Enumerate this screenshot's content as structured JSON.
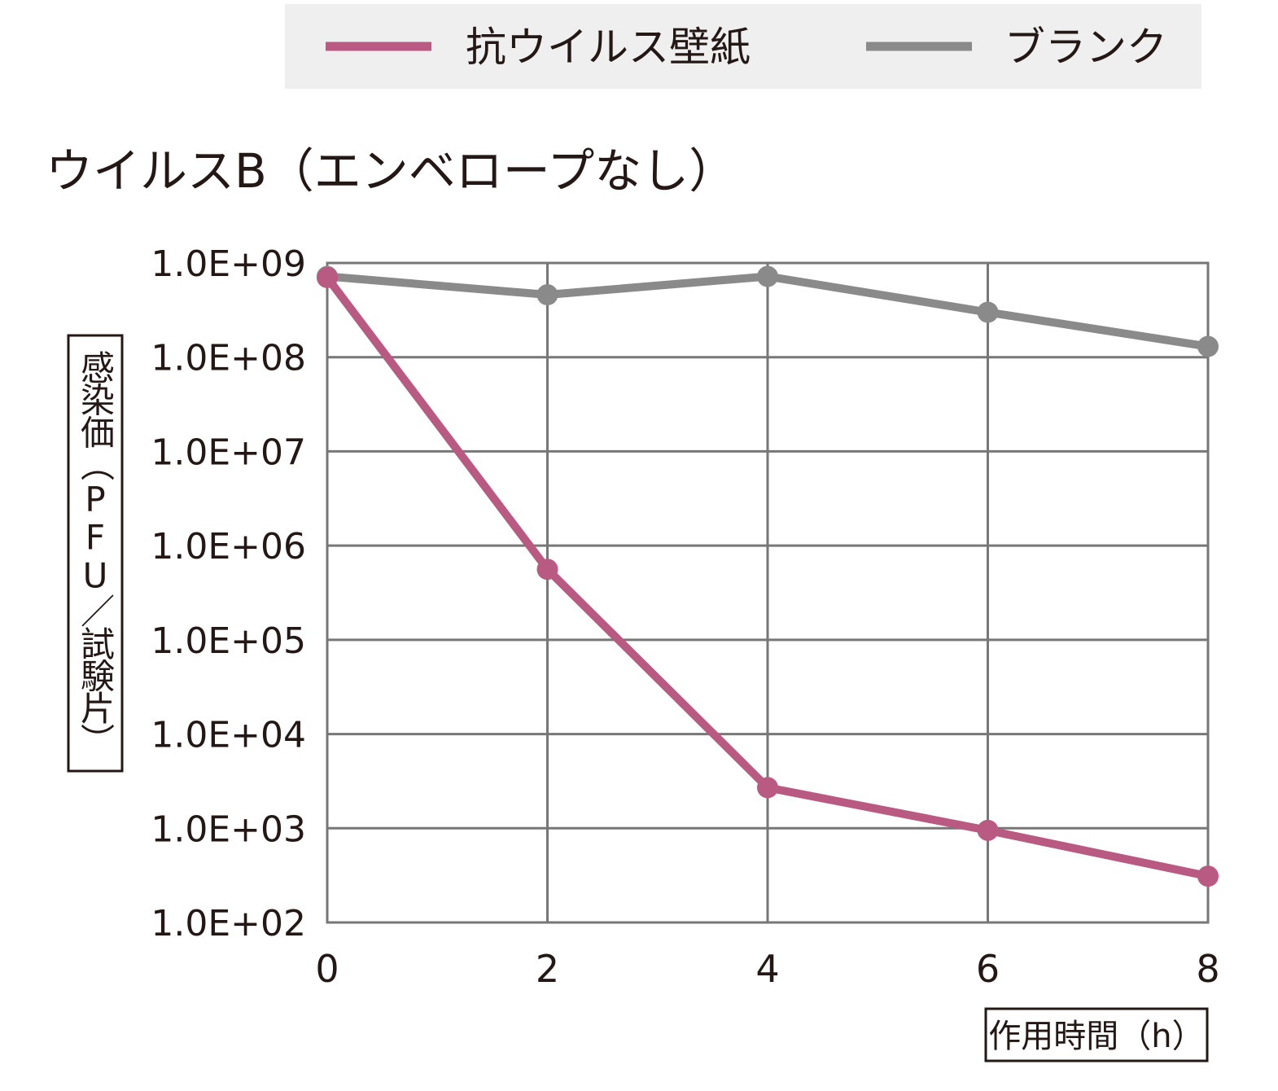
{
  "colors": {
    "antiviral": "#b85a82",
    "blank": "#8a8a8a",
    "grid": "#777777",
    "legend_bg": "#efefef",
    "text": "#231815"
  },
  "chart_data": {
    "type": "line",
    "title": "ウイルスB（エンベロープなし）",
    "xlabel": "作用時間（h）",
    "ylabel": "感染価（PFU／試験片）",
    "yscale": "log",
    "x": [
      0,
      2,
      4,
      6,
      8
    ],
    "xticks": [
      "0",
      "2",
      "4",
      "6",
      "8"
    ],
    "xlim": [
      0,
      8
    ],
    "ylim": [
      100,
      1000000000
    ],
    "yticks": [
      {
        "value": 1000000000,
        "label": "1.0E+09"
      },
      {
        "value": 100000000,
        "label": "1.0E+08"
      },
      {
        "value": 10000000,
        "label": "1.0E+07"
      },
      {
        "value": 1000000,
        "label": "1.0E+06"
      },
      {
        "value": 100000,
        "label": "1.0E+05"
      },
      {
        "value": 10000,
        "label": "1.0E+04"
      },
      {
        "value": 1000,
        "label": "1.0E+03"
      },
      {
        "value": 100,
        "label": "1.0E+02"
      }
    ],
    "grid": true,
    "legend_position": "top",
    "series": [
      {
        "name": "ブランク",
        "color": "#8a8a8a",
        "values": [
          720000000,
          460000000,
          720000000,
          300000000,
          130000000
        ]
      },
      {
        "name": "抗ウイルス壁紙",
        "color": "#b85a82",
        "values": [
          700000000,
          560000,
          2700,
          950,
          310
        ]
      }
    ]
  }
}
